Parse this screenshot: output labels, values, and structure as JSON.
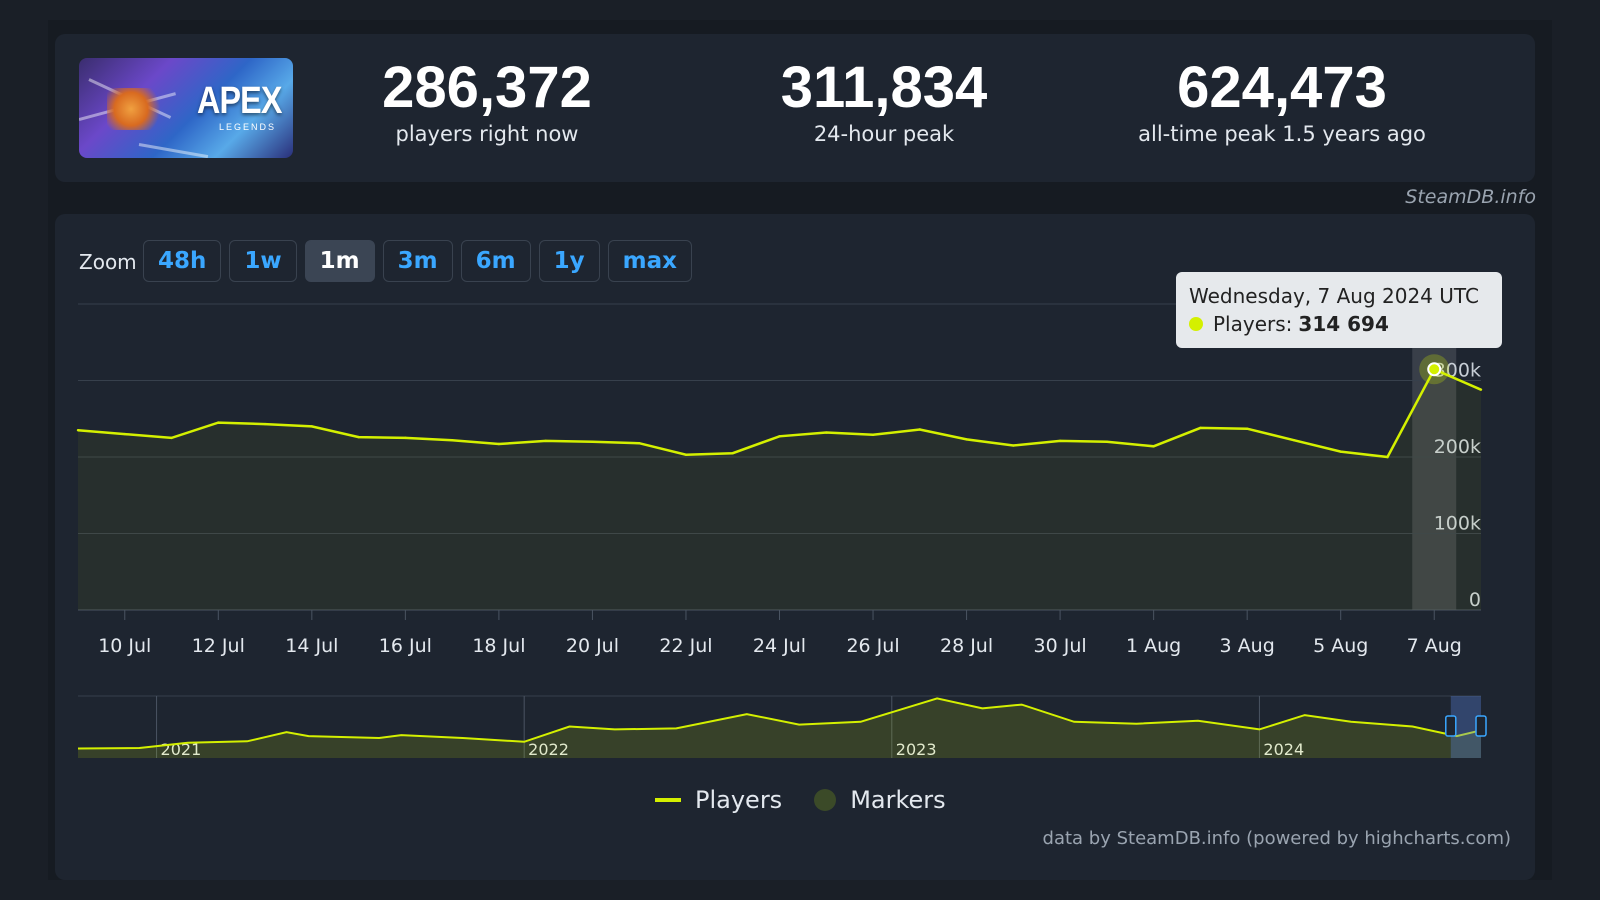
{
  "stats": {
    "current": {
      "value": "286,372",
      "label": "players right now"
    },
    "peak24": {
      "value": "311,834",
      "label": "24-hour peak"
    },
    "alltime": {
      "value": "624,473",
      "label": "all-time peak 1.5 years ago"
    }
  },
  "logo": {
    "brand": "APEX",
    "sub": "LEGENDS"
  },
  "credit_top": "SteamDB.info",
  "zoom": {
    "label": "Zoom",
    "buttons": [
      "48h",
      "1w",
      "1m",
      "3m",
      "6m",
      "1y",
      "max"
    ],
    "active": "1m"
  },
  "tooltip": {
    "date": "Wednesday, 7 Aug 2024 UTC",
    "series_label": "Players:",
    "value": "314 694"
  },
  "legend": {
    "players": "Players",
    "markers": "Markers"
  },
  "credit_bottom": "data by SteamDB.info (powered by highcharts.com)",
  "colors": {
    "series": "#d4f000",
    "marker": "#3b4a28",
    "accent": "#3aa7ff"
  },
  "chart_data": [
    {
      "type": "line",
      "series": [
        {
          "name": "Players"
        }
      ],
      "ylim": [
        0,
        400000
      ],
      "yticks": [
        {
          "v": 0,
          "label": "0"
        },
        {
          "v": 100000,
          "label": "100k"
        },
        {
          "v": 200000,
          "label": "200k"
        },
        {
          "v": 300000,
          "label": "300k"
        }
      ],
      "xlim": [
        "2024-07-09",
        "2024-08-08"
      ],
      "xticks": [
        {
          "date": "2024-07-10",
          "label": "10 Jul"
        },
        {
          "date": "2024-07-12",
          "label": "12 Jul"
        },
        {
          "date": "2024-07-14",
          "label": "14 Jul"
        },
        {
          "date": "2024-07-16",
          "label": "16 Jul"
        },
        {
          "date": "2024-07-18",
          "label": "18 Jul"
        },
        {
          "date": "2024-07-20",
          "label": "20 Jul"
        },
        {
          "date": "2024-07-22",
          "label": "22 Jul"
        },
        {
          "date": "2024-07-24",
          "label": "24 Jul"
        },
        {
          "date": "2024-07-26",
          "label": "26 Jul"
        },
        {
          "date": "2024-07-28",
          "label": "28 Jul"
        },
        {
          "date": "2024-07-30",
          "label": "30 Jul"
        },
        {
          "date": "2024-08-01",
          "label": "1 Aug"
        },
        {
          "date": "2024-08-03",
          "label": "3 Aug"
        },
        {
          "date": "2024-08-05",
          "label": "5 Aug"
        },
        {
          "date": "2024-08-07",
          "label": "7 Aug"
        }
      ],
      "points": [
        {
          "date": "2024-07-09",
          "v": 235000
        },
        {
          "date": "2024-07-10",
          "v": 230000
        },
        {
          "date": "2024-07-11",
          "v": 225000
        },
        {
          "date": "2024-07-12",
          "v": 245000
        },
        {
          "date": "2024-07-13",
          "v": 243000
        },
        {
          "date": "2024-07-14",
          "v": 240000
        },
        {
          "date": "2024-07-15",
          "v": 226000
        },
        {
          "date": "2024-07-16",
          "v": 225000
        },
        {
          "date": "2024-07-17",
          "v": 222000
        },
        {
          "date": "2024-07-18",
          "v": 217000
        },
        {
          "date": "2024-07-19",
          "v": 221000
        },
        {
          "date": "2024-07-20",
          "v": 220000
        },
        {
          "date": "2024-07-21",
          "v": 218000
        },
        {
          "date": "2024-07-22",
          "v": 203000
        },
        {
          "date": "2024-07-23",
          "v": 205000
        },
        {
          "date": "2024-07-24",
          "v": 227000
        },
        {
          "date": "2024-07-25",
          "v": 232000
        },
        {
          "date": "2024-07-26",
          "v": 229000
        },
        {
          "date": "2024-07-27",
          "v": 236000
        },
        {
          "date": "2024-07-28",
          "v": 223000
        },
        {
          "date": "2024-07-29",
          "v": 215000
        },
        {
          "date": "2024-07-30",
          "v": 221000
        },
        {
          "date": "2024-07-31",
          "v": 220000
        },
        {
          "date": "2024-08-01",
          "v": 214000
        },
        {
          "date": "2024-08-02",
          "v": 238000
        },
        {
          "date": "2024-08-03",
          "v": 237000
        },
        {
          "date": "2024-08-04",
          "v": 222000
        },
        {
          "date": "2024-08-05",
          "v": 207000
        },
        {
          "date": "2024-08-06",
          "v": 200000
        },
        {
          "date": "2024-08-07",
          "v": 314694
        },
        {
          "date": "2024-08-08",
          "v": 288000
        }
      ],
      "highlight": {
        "date": "2024-08-07",
        "v": 314694
      }
    },
    {
      "type": "area",
      "role": "navigator",
      "xlim": [
        "2020-10-15",
        "2024-08-08"
      ],
      "year_labels": [
        {
          "date": "2021-01-01",
          "label": "2021"
        },
        {
          "date": "2022-01-01",
          "label": "2022"
        },
        {
          "date": "2023-01-01",
          "label": "2023"
        },
        {
          "date": "2024-01-01",
          "label": "2024"
        }
      ],
      "ylim": [
        0,
        650000
      ],
      "points": [
        {
          "date": "2020-10-15",
          "v": 100000
        },
        {
          "date": "2020-12-15",
          "v": 105000
        },
        {
          "date": "2021-02-01",
          "v": 160000
        },
        {
          "date": "2021-04-01",
          "v": 175000
        },
        {
          "date": "2021-05-10",
          "v": 270000
        },
        {
          "date": "2021-06-01",
          "v": 230000
        },
        {
          "date": "2021-08-10",
          "v": 210000
        },
        {
          "date": "2021-09-01",
          "v": 240000
        },
        {
          "date": "2021-11-01",
          "v": 210000
        },
        {
          "date": "2022-01-01",
          "v": 170000
        },
        {
          "date": "2022-02-15",
          "v": 330000
        },
        {
          "date": "2022-04-01",
          "v": 300000
        },
        {
          "date": "2022-06-01",
          "v": 310000
        },
        {
          "date": "2022-08-10",
          "v": 460000
        },
        {
          "date": "2022-10-01",
          "v": 350000
        },
        {
          "date": "2022-12-01",
          "v": 380000
        },
        {
          "date": "2023-02-15",
          "v": 624473
        },
        {
          "date": "2023-04-01",
          "v": 520000
        },
        {
          "date": "2023-05-10",
          "v": 560000
        },
        {
          "date": "2023-07-01",
          "v": 380000
        },
        {
          "date": "2023-09-01",
          "v": 360000
        },
        {
          "date": "2023-11-01",
          "v": 390000
        },
        {
          "date": "2024-01-01",
          "v": 300000
        },
        {
          "date": "2024-02-15",
          "v": 450000
        },
        {
          "date": "2024-04-01",
          "v": 380000
        },
        {
          "date": "2024-06-01",
          "v": 330000
        },
        {
          "date": "2024-07-15",
          "v": 230000
        },
        {
          "date": "2024-08-08",
          "v": 290000
        }
      ],
      "selection": [
        "2024-07-09",
        "2024-08-08"
      ]
    }
  ]
}
